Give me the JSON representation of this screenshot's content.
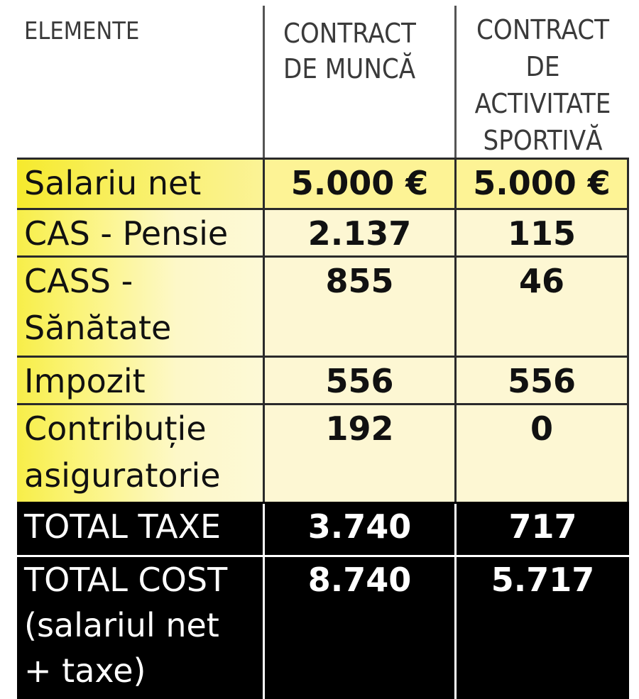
{
  "header": {
    "col1": [
      "ELEMENTE"
    ],
    "col2": [
      "CONTRACT",
      "DE MUNCĂ"
    ],
    "col3": [
      "CONTRACT",
      "DE",
      "ACTIVITATE",
      "SPORTIVĂ"
    ]
  },
  "rows": [
    {
      "label": [
        "Salariu net"
      ],
      "munca": "5.000 €",
      "sportiva": "5.000 €"
    },
    {
      "label": [
        "CAS - Pensie"
      ],
      "munca": "2.137",
      "sportiva": "115"
    },
    {
      "label": [
        "CASS -",
        "Sănătate"
      ],
      "munca": "855",
      "sportiva": "46"
    },
    {
      "label": [
        "Impozit"
      ],
      "munca": "556",
      "sportiva": "556"
    },
    {
      "label": [
        "Contribuție",
        "asiguratorie"
      ],
      "munca": "192",
      "sportiva": "0"
    }
  ],
  "totals": [
    {
      "label": [
        "TOTAL TAXE"
      ],
      "munca": "3.740",
      "sportiva": "717"
    },
    {
      "label": [
        "TOTAL COST",
        "(salariul net",
        "+ taxe)"
      ],
      "munca": "8.740",
      "sportiva": "5.717"
    }
  ],
  "colors": {
    "highlight_yellow": "#f7ee49",
    "cell_cream": "#fdf7d3",
    "total_bg": "#000000"
  }
}
